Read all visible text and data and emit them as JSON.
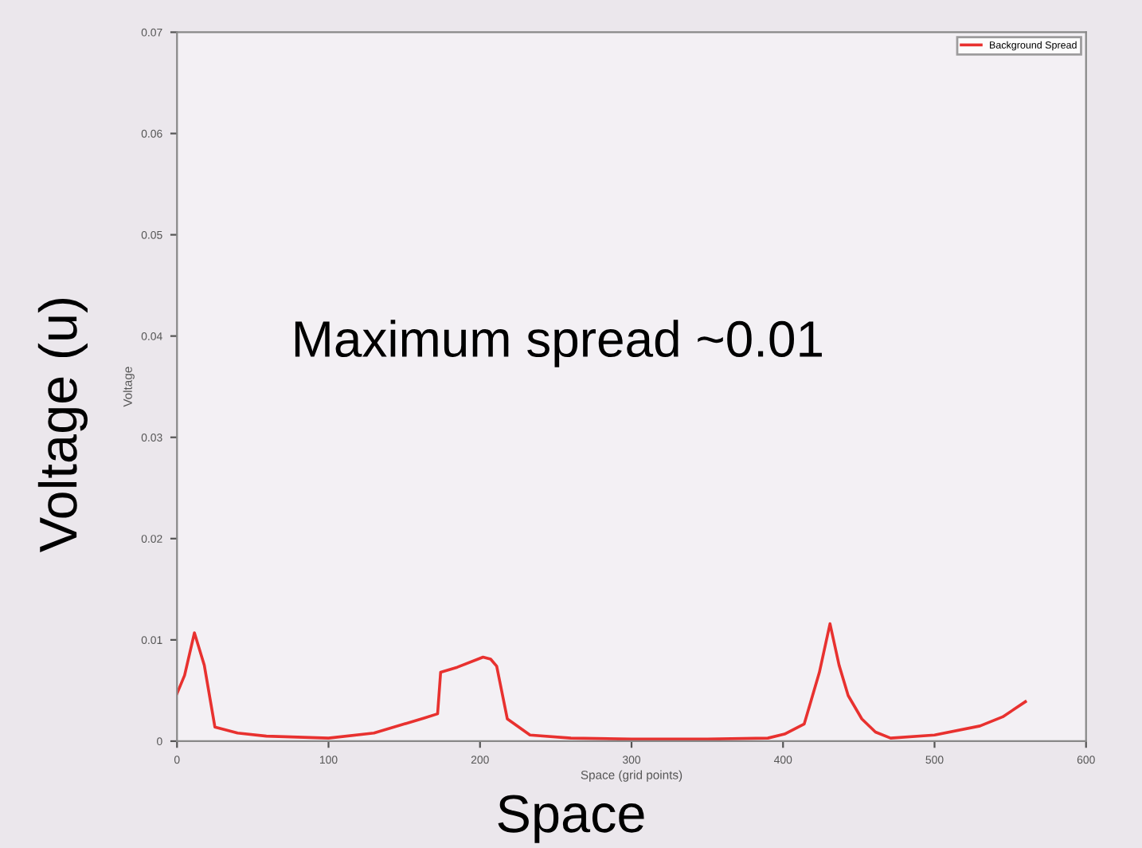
{
  "chart_data": {
    "type": "line",
    "xlabel": "Space (grid points)",
    "ylabel": "Voltage",
    "annotations": [
      "Voltage (u)",
      "Space",
      "Maximum spread ~0.01"
    ],
    "x": [
      0,
      5,
      11.5,
      18,
      25,
      40,
      59,
      100,
      130,
      163.5,
      172,
      174,
      185,
      202,
      207,
      211,
      218,
      233,
      260,
      300,
      350,
      390,
      401,
      414,
      424,
      431,
      437,
      443,
      452,
      461,
      471,
      500,
      530,
      545,
      560
    ],
    "series": [
      {
        "name": "Background Spread",
        "color": "#e8312f",
        "values": [
          0.0047,
          0.0065,
          0.0107,
          0.0075,
          0.0014,
          0.0008,
          0.0005,
          0.0003,
          0.0008,
          0.0023,
          0.0027,
          0.0068,
          0.0073,
          0.0083,
          0.0081,
          0.0074,
          0.0022,
          0.0006,
          0.0003,
          0.0002,
          0.0002,
          0.0003,
          0.0007,
          0.0017,
          0.0068,
          0.0116,
          0.0075,
          0.0045,
          0.0022,
          0.0009,
          0.0003,
          0.0006,
          0.0015,
          0.0024,
          0.0039
        ]
      }
    ],
    "xlim": [
      0,
      600
    ],
    "xticks": [
      0,
      100,
      200,
      300,
      400,
      500,
      600
    ],
    "ylim": [
      0,
      0.07
    ],
    "yticks": [
      0,
      0.01,
      0.02,
      0.03,
      0.04,
      0.05,
      0.06,
      0.07
    ],
    "grid": false,
    "legend": "top right",
    "marker": "none",
    "line_style": "solid"
  }
}
